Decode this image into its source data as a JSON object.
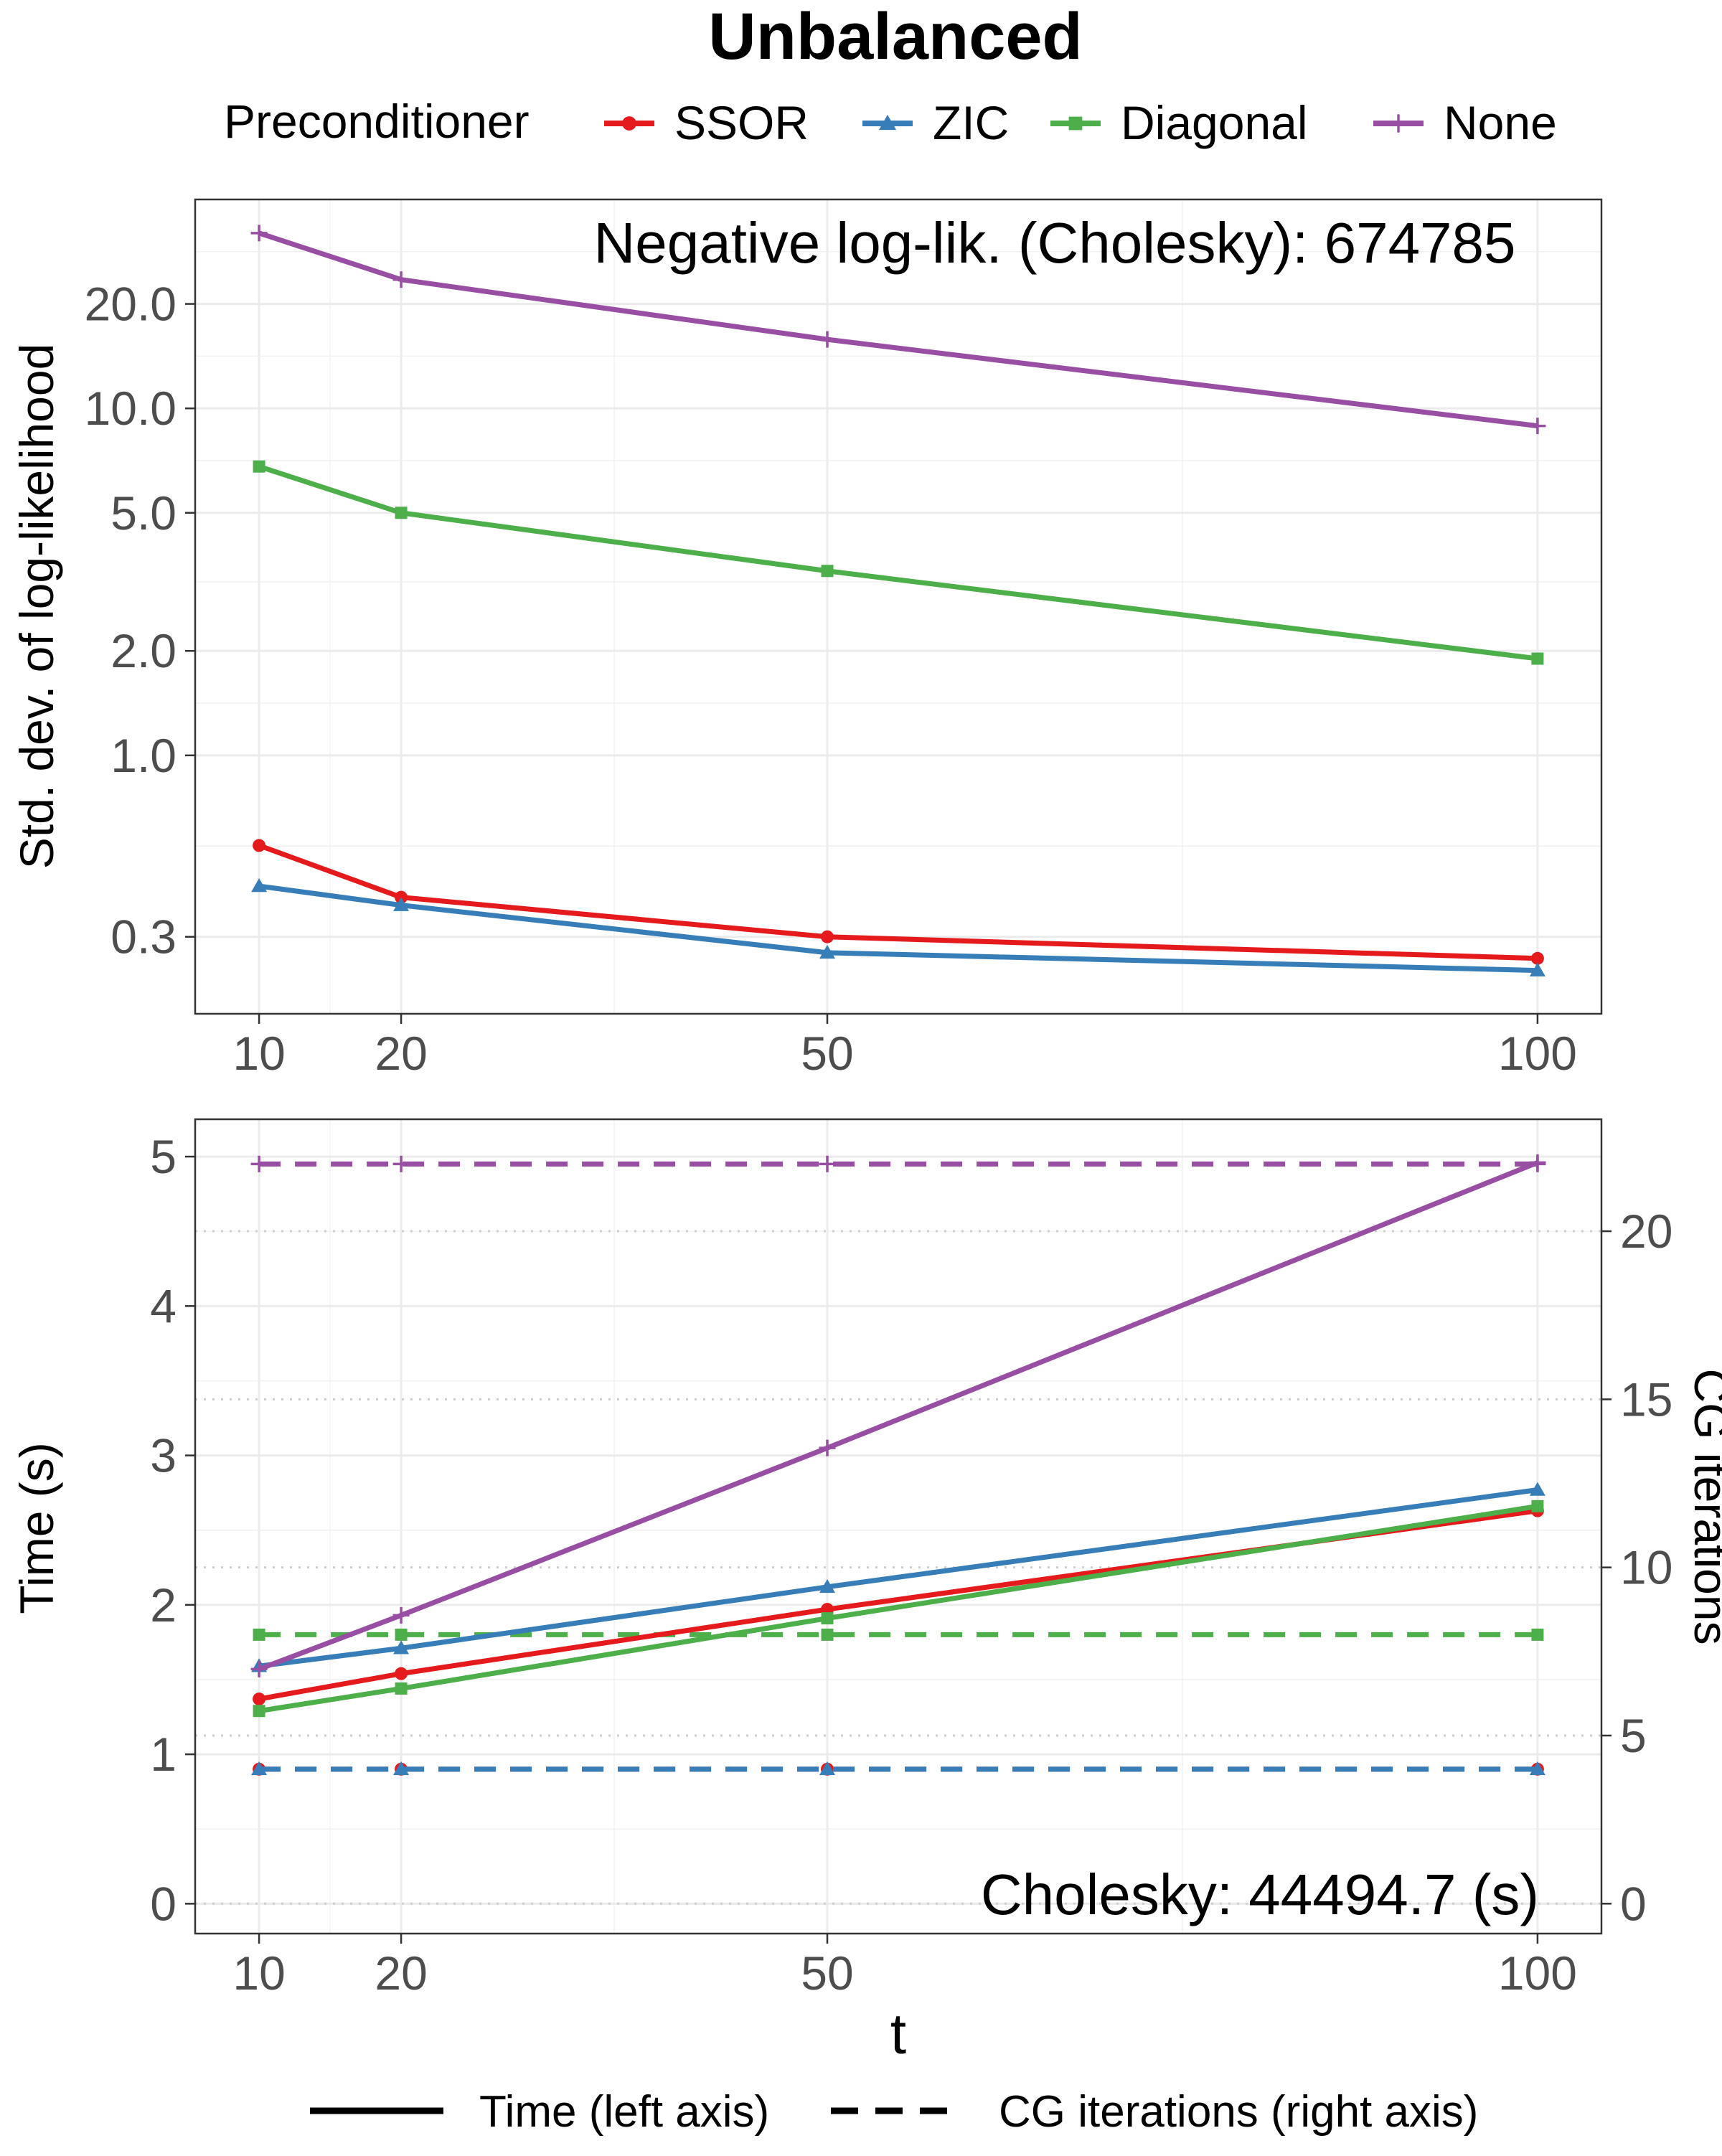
{
  "chart_data": {
    "title": "Unbalanced",
    "legend": {
      "title": "Preconditioner",
      "entries": [
        "SSOR",
        "ZIC",
        "Diagonal",
        "None"
      ],
      "placement": "top"
    },
    "colors": {
      "SSOR": "#E41A1C",
      "ZIC": "#377EB8",
      "Diagonal": "#4DAF4A",
      "None": "#984EA3"
    },
    "markers": {
      "SSOR": "circle",
      "ZIC": "triangle",
      "Diagonal": "square",
      "None": "plus"
    },
    "x": [
      10,
      20,
      50,
      100
    ],
    "xlabel": "t",
    "panels": [
      {
        "type": "line",
        "ylabel": "Std. dev. of log-likelihood",
        "yscale": "log",
        "ylim": [
          0.18,
          40
        ],
        "yticks": [
          0.3,
          1.0,
          2.0,
          5.0,
          10.0,
          20.0
        ],
        "ytick_labels": [
          "0.3",
          "1.0",
          "2.0",
          "5.0",
          "10.0",
          "20.0"
        ],
        "annotation": "Negative log-lik. (Cholesky): 674785",
        "series": [
          {
            "name": "SSOR",
            "values": [
              0.55,
              0.39,
              0.3,
              0.26
            ]
          },
          {
            "name": "ZIC",
            "values": [
              0.42,
              0.37,
              0.27,
              0.24
            ]
          },
          {
            "name": "Diagonal",
            "values": [
              6.8,
              5.0,
              3.4,
              1.9
            ]
          },
          {
            "name": "None",
            "values": [
              32,
              23.5,
              15.8,
              8.9
            ]
          }
        ]
      },
      {
        "type": "line",
        "ylabel": "Time (s)",
        "ylim": [
          -0.2,
          5.25
        ],
        "yticks": [
          0,
          1,
          2,
          3,
          4,
          5
        ],
        "ytick_labels": [
          "0",
          "1",
          "2",
          "3",
          "4",
          "5"
        ],
        "y2label": "CG iterations",
        "y2lim": [
          -0.89,
          23.33
        ],
        "y2ticks": [
          0,
          5,
          10,
          15,
          20
        ],
        "y2tick_labels": [
          "0",
          "5",
          "10",
          "15",
          "20"
        ],
        "annotation": "Cholesky: 44494.7 (s)",
        "time_series": [
          {
            "name": "SSOR",
            "values": [
              1.37,
              1.54,
              1.97,
              2.63
            ]
          },
          {
            "name": "ZIC",
            "values": [
              1.59,
              1.71,
              2.12,
              2.77
            ]
          },
          {
            "name": "Diagonal",
            "values": [
              1.29,
              1.44,
              1.91,
              2.66
            ]
          },
          {
            "name": "None",
            "values": [
              1.57,
              1.93,
              3.05,
              4.96
            ]
          }
        ],
        "cg_series": [
          {
            "name": "SSOR",
            "values": [
              4,
              4,
              4,
              4
            ]
          },
          {
            "name": "ZIC",
            "values": [
              4,
              4,
              4,
              4
            ]
          },
          {
            "name": "Diagonal",
            "values": [
              8,
              8,
              8,
              8
            ]
          },
          {
            "name": "None",
            "values": [
              22,
              22,
              22,
              22
            ]
          }
        ]
      }
    ],
    "linetype_legend": {
      "solid": "Time (left axis)",
      "dashed": "CG iterations (right axis)"
    }
  }
}
